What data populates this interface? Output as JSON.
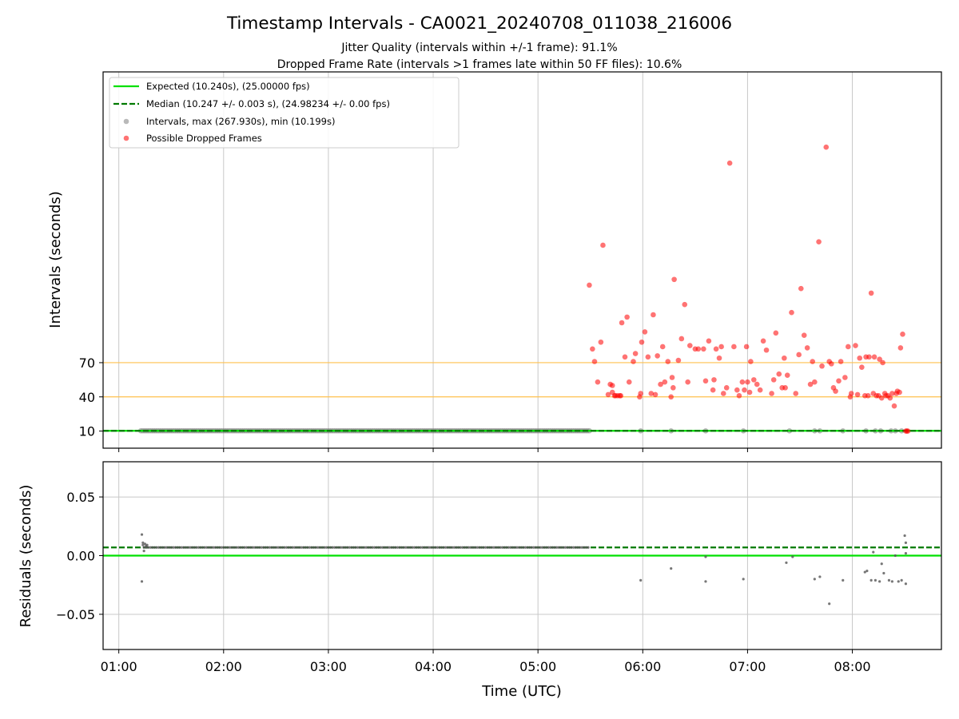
{
  "chart_data": [
    {
      "type": "scatter",
      "title": "Timestamp Intervals - CA0021_20240708_011038_216006",
      "subtitle_lines": [
        "Jitter Quality (intervals within +/-1 frame): 91.1%",
        "Dropped Frame Rate (intervals >1 frames late within 50 FF files): 10.6%"
      ],
      "xlabel": "",
      "ylabel": "Intervals (seconds)",
      "x_unit": "hours UTC",
      "xlim": [
        0.85,
        8.85
      ],
      "ylim": [
        -5,
        325
      ],
      "yticks": [
        10,
        40,
        70
      ],
      "yticklabels": [
        "10",
        "40",
        "70"
      ],
      "xticks": [
        1,
        2,
        3,
        4,
        5,
        6,
        7,
        8
      ],
      "xticklabels": [
        "",
        "",
        "",
        "",
        "",
        "",
        "",
        ""
      ],
      "grid": "vertical",
      "threshold_lines": [
        40,
        70
      ],
      "legend_position": "upper left",
      "legend": [
        "Expected (10.240s), (25.00000 fps)",
        "Median (10.247 +/- 0.003 s), (24.98234 +/- 0.00 fps)",
        "Intervals, max (267.930s), min (10.199s)",
        "Possible Dropped Frames"
      ],
      "colors": {
        "expected": "#00e000",
        "median": "#007a00",
        "intervals": "#808080",
        "dropped": "#ff0000",
        "threshold": "#ffc04d",
        "grid": "#c8c8c8"
      },
      "series": [
        {
          "name": "Expected (10.240s), (25.00000 fps)",
          "kind": "hline",
          "y": 10.24
        },
        {
          "name": "Median (10.247 +/- 0.003 s), (24.98234 +/- 0.00 fps)",
          "kind": "hline-dashed",
          "y": 10.247
        },
        {
          "name": "Intervals, max (267.930s), min (10.199s)",
          "kind": "scatter-range",
          "x_start": 1.21,
          "x_end": 5.49,
          "x_step": 0.02,
          "y": 10.25,
          "extra_points": [
            [
              5.98,
              10.2
            ],
            [
              6.27,
              10.2
            ],
            [
              6.6,
              10.2
            ],
            [
              6.96,
              10.2
            ],
            [
              7.4,
              10.2
            ],
            [
              7.64,
              10.2
            ],
            [
              7.69,
              10.2
            ],
            [
              7.91,
              10.2
            ],
            [
              8.13,
              10.2
            ],
            [
              8.22,
              10.2
            ],
            [
              8.27,
              10.2
            ],
            [
              8.37,
              10.2
            ],
            [
              8.41,
              10.2
            ],
            [
              8.47,
              10.2
            ]
          ]
        },
        {
          "name": "Possible Dropped Frames",
          "kind": "scatter",
          "points": [
            [
              5.49,
              138
            ],
            [
              5.52,
              82
            ],
            [
              5.54,
              71
            ],
            [
              5.57,
              53
            ],
            [
              5.6,
              88
            ],
            [
              5.62,
              173
            ],
            [
              5.67,
              42
            ],
            [
              5.69,
              51
            ],
            [
              5.71,
              44
            ],
            [
              5.71,
              50
            ],
            [
              5.73,
              41
            ],
            [
              5.74,
              41
            ],
            [
              5.76,
              41
            ],
            [
              5.78,
              41
            ],
            [
              5.79,
              41
            ],
            [
              5.8,
              105
            ],
            [
              5.83,
              75
            ],
            [
              5.85,
              110
            ],
            [
              5.87,
              53
            ],
            [
              5.91,
              71
            ],
            [
              5.93,
              78
            ],
            [
              5.97,
              40
            ],
            [
              5.98,
              43
            ],
            [
              5.99,
              88
            ],
            [
              6.02,
              97
            ],
            [
              6.05,
              75
            ],
            [
              6.08,
              43
            ],
            [
              6.1,
              112
            ],
            [
              6.12,
              42
            ],
            [
              6.14,
              76
            ],
            [
              6.17,
              51
            ],
            [
              6.19,
              84
            ],
            [
              6.21,
              53
            ],
            [
              6.24,
              71
            ],
            [
              6.27,
              40
            ],
            [
              6.28,
              57
            ],
            [
              6.29,
              48
            ],
            [
              6.3,
              143
            ],
            [
              6.34,
              72
            ],
            [
              6.37,
              91
            ],
            [
              6.4,
              121
            ],
            [
              6.43,
              53
            ],
            [
              6.45,
              85
            ],
            [
              6.5,
              82
            ],
            [
              6.53,
              82
            ],
            [
              6.58,
              82
            ],
            [
              6.6,
              54
            ],
            [
              6.63,
              89
            ],
            [
              6.67,
              46
            ],
            [
              6.68,
              55
            ],
            [
              6.7,
              82
            ],
            [
              6.73,
              74
            ],
            [
              6.75,
              84
            ],
            [
              6.77,
              43
            ],
            [
              6.8,
              48
            ],
            [
              6.83,
              245
            ],
            [
              6.87,
              84
            ],
            [
              6.9,
              46
            ],
            [
              6.92,
              41
            ],
            [
              6.95,
              53
            ],
            [
              6.97,
              46
            ],
            [
              6.99,
              84
            ],
            [
              7.0,
              53
            ],
            [
              7.02,
              44
            ],
            [
              7.03,
              71
            ],
            [
              7.06,
              55
            ],
            [
              7.09,
              51
            ],
            [
              7.12,
              46
            ],
            [
              7.15,
              89
            ],
            [
              7.18,
              81
            ],
            [
              7.23,
              43
            ],
            [
              7.25,
              55
            ],
            [
              7.27,
              96
            ],
            [
              7.3,
              60
            ],
            [
              7.33,
              48
            ],
            [
              7.35,
              74
            ],
            [
              7.36,
              48
            ],
            [
              7.38,
              59
            ],
            [
              7.42,
              114
            ],
            [
              7.46,
              43
            ],
            [
              7.49,
              77
            ],
            [
              7.51,
              135
            ],
            [
              7.54,
              94
            ],
            [
              7.57,
              83
            ],
            [
              7.6,
              51
            ],
            [
              7.62,
              71
            ],
            [
              7.64,
              53
            ],
            [
              7.68,
              176
            ],
            [
              7.71,
              67
            ],
            [
              7.75,
              259
            ],
            [
              7.78,
              71
            ],
            [
              7.8,
              69
            ],
            [
              7.82,
              48
            ],
            [
              7.84,
              45
            ],
            [
              7.87,
              54
            ],
            [
              7.89,
              71
            ],
            [
              7.93,
              57
            ],
            [
              7.96,
              84
            ],
            [
              7.98,
              40
            ],
            [
              7.99,
              43
            ],
            [
              8.03,
              85
            ],
            [
              8.05,
              42
            ],
            [
              8.07,
              74
            ],
            [
              8.09,
              66
            ],
            [
              8.12,
              41
            ],
            [
              8.13,
              75
            ],
            [
              8.15,
              41
            ],
            [
              8.16,
              75
            ],
            [
              8.18,
              131
            ],
            [
              8.2,
              43
            ],
            [
              8.21,
              75
            ],
            [
              8.23,
              41
            ],
            [
              8.25,
              41
            ],
            [
              8.26,
              73
            ],
            [
              8.28,
              39
            ],
            [
              8.29,
              70
            ],
            [
              8.31,
              43
            ],
            [
              8.32,
              41
            ],
            [
              8.34,
              41
            ],
            [
              8.36,
              39
            ],
            [
              8.38,
              43
            ],
            [
              8.4,
              32
            ],
            [
              8.42,
              43
            ],
            [
              8.43,
              45
            ],
            [
              8.45,
              44
            ],
            [
              8.46,
              83
            ],
            [
              8.48,
              95
            ],
            [
              8.51,
              10
            ],
            [
              8.52,
              10
            ],
            [
              8.53,
              10
            ]
          ]
        }
      ]
    },
    {
      "type": "scatter",
      "title": "",
      "xlabel": "Time (UTC)",
      "ylabel": "Residuals (seconds)",
      "x_unit": "hours UTC",
      "xlim": [
        0.85,
        8.85
      ],
      "ylim": [
        -0.08,
        0.08
      ],
      "yticks": [
        0.05,
        0.0,
        -0.05
      ],
      "yticklabels": [
        "0.05",
        "0.00",
        "−0.05"
      ],
      "xticks": [
        1,
        2,
        3,
        4,
        5,
        6,
        7,
        8
      ],
      "xticklabels": [
        "01:00",
        "02:00",
        "03:00",
        "04:00",
        "05:00",
        "06:00",
        "07:00",
        "08:00"
      ],
      "grid": "both",
      "colors": {
        "zero_line": "#00e000",
        "median_line": "#007a00",
        "points": "#555555",
        "grid": "#c8c8c8"
      },
      "series": [
        {
          "kind": "hline",
          "y": 0.0
        },
        {
          "kind": "hline-dashed",
          "y": 0.007
        },
        {
          "kind": "scatter-range",
          "x_start": 1.24,
          "x_end": 5.49,
          "x_step": 0.02,
          "y": 0.007,
          "extra_points": [
            [
              1.22,
              0.018
            ],
            [
              1.22,
              -0.022
            ],
            [
              1.23,
              0.011
            ],
            [
              1.23,
              0.009
            ],
            [
              1.24,
              0.004
            ],
            [
              1.25,
              0.01
            ],
            [
              1.26,
              0.008
            ],
            [
              1.27,
              0.009
            ],
            [
              5.98,
              -0.021
            ],
            [
              6.27,
              -0.011
            ],
            [
              6.6,
              -0.022
            ],
            [
              6.6,
              -0.001
            ],
            [
              6.96,
              -0.02
            ],
            [
              7.37,
              -0.006
            ],
            [
              7.43,
              -0.001
            ],
            [
              7.64,
              -0.02
            ],
            [
              7.69,
              -0.018
            ],
            [
              7.78,
              -0.041
            ],
            [
              7.91,
              -0.021
            ],
            [
              8.12,
              -0.014
            ],
            [
              8.14,
              -0.013
            ],
            [
              8.18,
              -0.021
            ],
            [
              8.2,
              0.003
            ],
            [
              8.22,
              -0.021
            ],
            [
              8.26,
              -0.022
            ],
            [
              8.28,
              -0.007
            ],
            [
              8.3,
              -0.015
            ],
            [
              8.35,
              -0.021
            ],
            [
              8.38,
              -0.022
            ],
            [
              8.41,
              0.0
            ],
            [
              8.44,
              -0.022
            ],
            [
              8.47,
              -0.021
            ],
            [
              8.5,
              0.017
            ],
            [
              8.51,
              0.011
            ],
            [
              8.51,
              0.002
            ],
            [
              8.51,
              -0.024
            ]
          ]
        }
      ]
    }
  ]
}
